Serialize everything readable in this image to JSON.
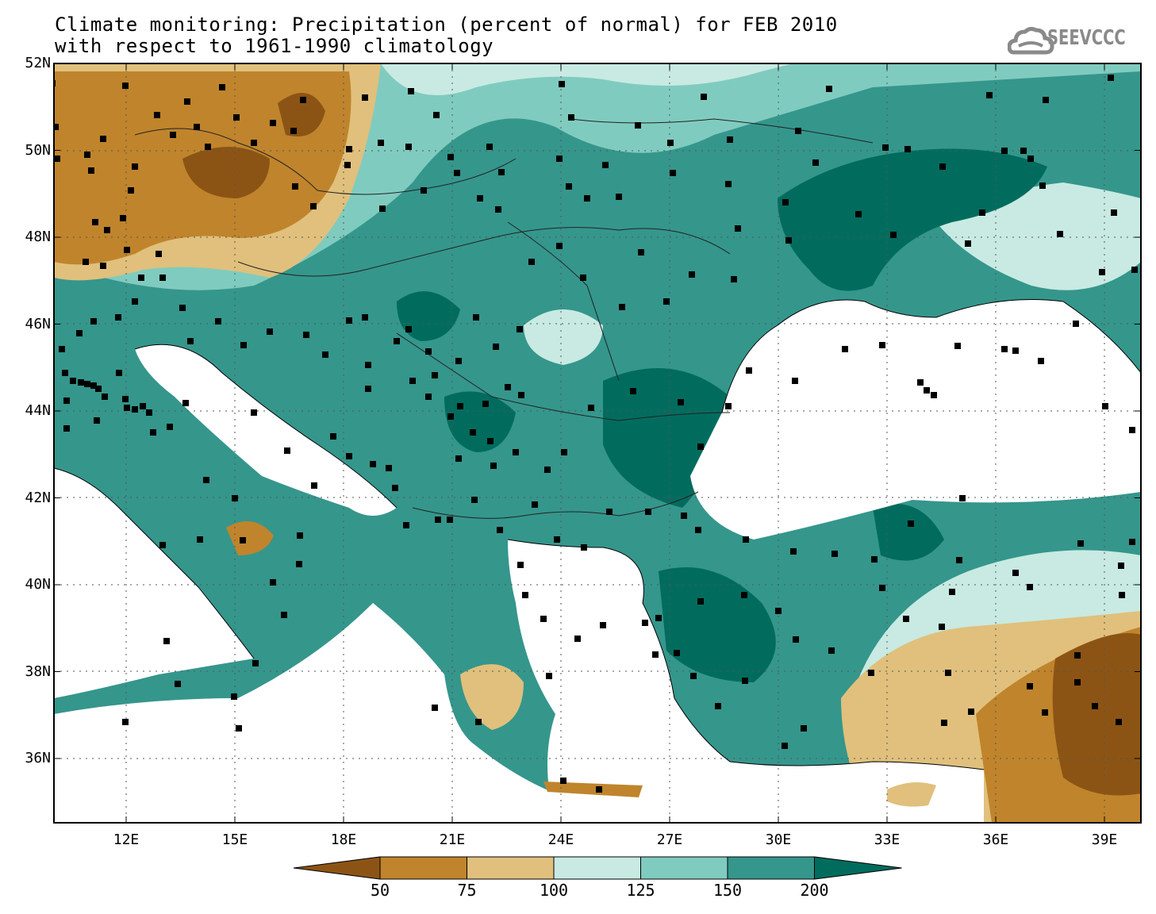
{
  "title": {
    "line1": "Climate monitoring: Precipitation (percent of normal) for FEB 2010",
    "line2": "with respect to 1961-1990 climatology"
  },
  "logo": {
    "text": "SEEVCCC",
    "icon": "cloud-icon",
    "color": "#8a8a8a"
  },
  "map": {
    "lat_range": [
      34.5,
      52
    ],
    "lon_range": [
      10,
      40
    ],
    "lat_ticks": [
      "52N",
      "50N",
      "48N",
      "46N",
      "44N",
      "42N",
      "40N",
      "38N",
      "36N"
    ],
    "lon_ticks": [
      "12E",
      "15E",
      "18E",
      "21E",
      "24E",
      "27E",
      "30E",
      "33E",
      "36E",
      "39E"
    ],
    "grid": "dotted"
  },
  "colorbar": {
    "labels": [
      "50",
      "75",
      "100",
      "125",
      "150",
      "200"
    ],
    "colors": [
      "#8c5414",
      "#c0842c",
      "#e0c07c",
      "#c8eae2",
      "#80cbbf",
      "#35968c",
      "#016c5e"
    ]
  }
}
